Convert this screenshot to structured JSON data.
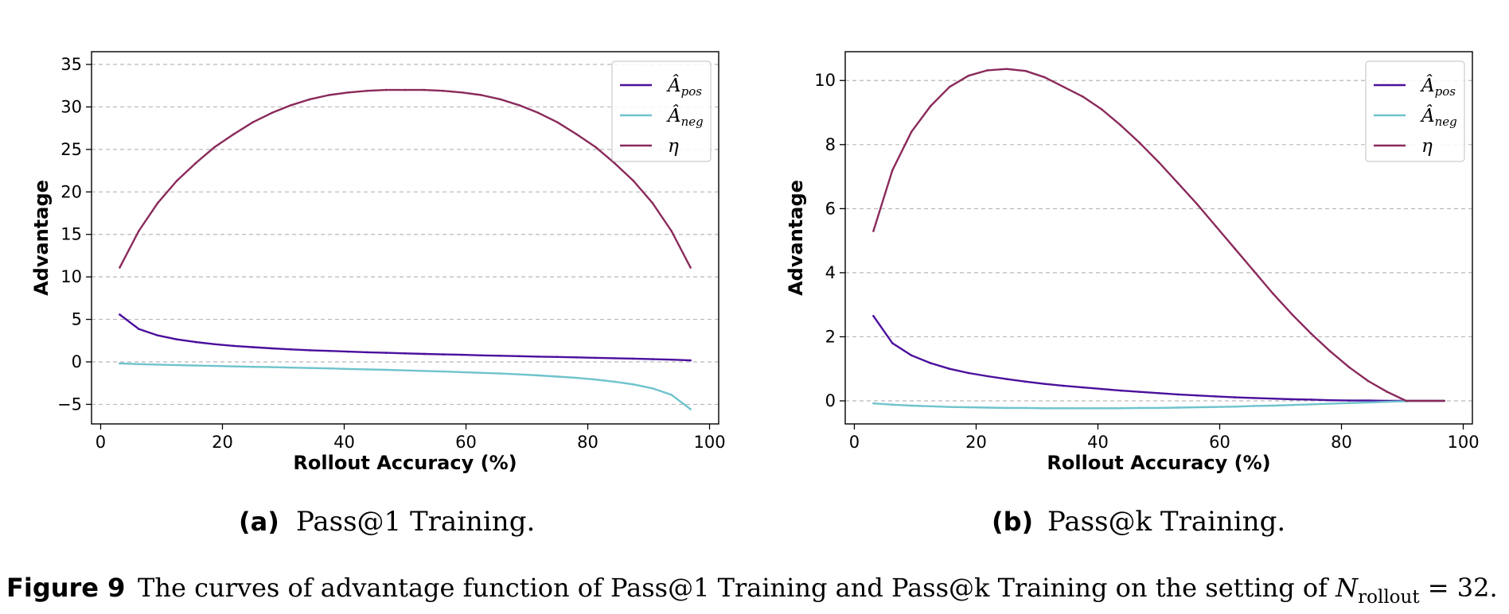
{
  "colors": {
    "pos": "#4b0f9c",
    "neg": "#6fc3cc",
    "eta": "#8a2a5a",
    "grid": "#b8b8b8"
  },
  "legend": {
    "pos_base": "Â",
    "pos_sub": "pos",
    "neg_base": "Â",
    "neg_sub": "neg",
    "eta": "η"
  },
  "caption": {
    "label": "Figure 9",
    "text": "The curves of advantage function of Pass@1 Training and Pass@k Training on the setting of ",
    "var": "N",
    "sub": "rollout",
    "tail": " = 32."
  },
  "chart_data": [
    {
      "type": "line",
      "subcaption_label": "(a)",
      "subcaption_text": "Pass@1 Training.",
      "xlabel": "Rollout Accuracy (%)",
      "ylabel": "Advantage",
      "xlim": [
        -1.5,
        101.5
      ],
      "ylim": [
        -7.3,
        36.5
      ],
      "xticks": [
        0,
        20,
        40,
        60,
        80,
        100
      ],
      "yticks": [
        -5,
        0,
        5,
        10,
        15,
        20,
        25,
        30,
        35
      ],
      "grid": "y-dashed",
      "legend_position": "top-right",
      "x": [
        3.125,
        6.25,
        9.375,
        12.5,
        15.625,
        18.75,
        21.875,
        25,
        28.125,
        31.25,
        34.375,
        37.5,
        40.625,
        43.75,
        46.875,
        50,
        53.125,
        56.25,
        59.375,
        62.5,
        65.625,
        68.75,
        71.875,
        75,
        78.125,
        81.25,
        84.375,
        87.5,
        90.625,
        93.75,
        96.875
      ],
      "series": [
        {
          "key": "pos",
          "values": [
            5.57,
            3.87,
            3.12,
            2.65,
            2.33,
            2.08,
            1.88,
            1.73,
            1.59,
            1.47,
            1.37,
            1.29,
            1.21,
            1.13,
            1.07,
            1.0,
            0.94,
            0.88,
            0.83,
            0.77,
            0.72,
            0.67,
            0.62,
            0.58,
            0.53,
            0.48,
            0.43,
            0.38,
            0.32,
            0.26,
            0.18
          ]
        },
        {
          "key": "neg",
          "values": [
            -0.18,
            -0.26,
            -0.32,
            -0.38,
            -0.43,
            -0.48,
            -0.53,
            -0.58,
            -0.62,
            -0.67,
            -0.72,
            -0.77,
            -0.83,
            -0.88,
            -0.94,
            -1.0,
            -1.07,
            -1.13,
            -1.21,
            -1.29,
            -1.37,
            -1.47,
            -1.59,
            -1.73,
            -1.88,
            -2.08,
            -2.33,
            -2.65,
            -3.12,
            -3.87,
            -5.57
          ]
        },
        {
          "key": "eta",
          "values": [
            11.1,
            15.4,
            18.7,
            21.3,
            23.4,
            25.3,
            26.8,
            28.2,
            29.3,
            30.2,
            30.9,
            31.4,
            31.7,
            31.9,
            32.0,
            32.0,
            32.0,
            31.9,
            31.7,
            31.4,
            30.9,
            30.2,
            29.3,
            28.2,
            26.8,
            25.3,
            23.4,
            21.3,
            18.7,
            15.4,
            11.1
          ]
        }
      ]
    },
    {
      "type": "line",
      "subcaption_label": "(b)",
      "subcaption_text": "Pass@k Training.",
      "xlabel": "Rollout Accuracy (%)",
      "ylabel": "Advantage",
      "xlim": [
        -1.5,
        101.5
      ],
      "ylim": [
        -0.72,
        10.9
      ],
      "xticks": [
        0,
        20,
        40,
        60,
        80,
        100
      ],
      "yticks": [
        0,
        2,
        4,
        6,
        8,
        10
      ],
      "grid": "y-dashed",
      "legend_position": "top-right",
      "x": [
        3.125,
        6.25,
        9.375,
        12.5,
        15.625,
        18.75,
        21.875,
        25,
        28.125,
        31.25,
        34.375,
        37.5,
        40.625,
        43.75,
        46.875,
        50,
        53.125,
        56.25,
        59.375,
        62.5,
        65.625,
        68.75,
        71.875,
        75,
        78.125,
        81.25,
        84.375,
        87.5,
        90.625,
        93.75,
        96.875
      ],
      "series": [
        {
          "key": "pos",
          "values": [
            2.65,
            1.8,
            1.42,
            1.18,
            1.0,
            0.87,
            0.77,
            0.68,
            0.6,
            0.53,
            0.47,
            0.42,
            0.37,
            0.32,
            0.28,
            0.24,
            0.2,
            0.17,
            0.14,
            0.11,
            0.09,
            0.07,
            0.05,
            0.04,
            0.02,
            0.01,
            0.01,
            0.0,
            0.0,
            0.0,
            0.0
          ]
        },
        {
          "key": "neg",
          "values": [
            -0.08,
            -0.12,
            -0.15,
            -0.17,
            -0.19,
            -0.2,
            -0.21,
            -0.22,
            -0.22,
            -0.23,
            -0.23,
            -0.23,
            -0.23,
            -0.23,
            -0.22,
            -0.22,
            -0.21,
            -0.2,
            -0.19,
            -0.18,
            -0.16,
            -0.15,
            -0.13,
            -0.11,
            -0.09,
            -0.07,
            -0.05,
            -0.03,
            -0.01,
            0.0,
            0.0
          ]
        },
        {
          "key": "eta",
          "values": [
            5.3,
            7.2,
            8.4,
            9.2,
            9.8,
            10.15,
            10.32,
            10.36,
            10.3,
            10.1,
            9.8,
            9.5,
            9.1,
            8.6,
            8.05,
            7.45,
            6.8,
            6.15,
            5.45,
            4.75,
            4.05,
            3.35,
            2.7,
            2.1,
            1.55,
            1.05,
            0.62,
            0.28,
            0.0,
            0.0,
            0.0
          ]
        }
      ]
    }
  ]
}
